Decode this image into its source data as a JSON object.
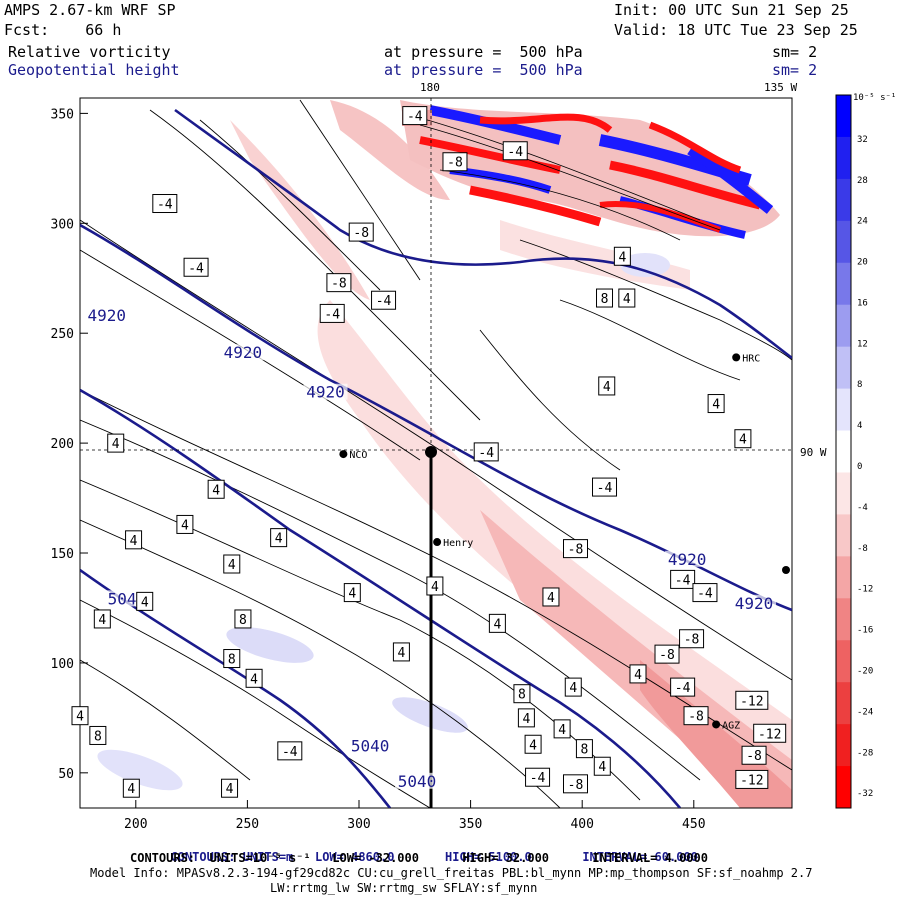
{
  "header": {
    "model": "AMPS 2.67-km WRF SP",
    "init": "Init: 00 UTC Sun 21 Sep 25",
    "fcst": "Fcst:    66 h",
    "valid": "Valid: 18 UTC Tue 23 Sep 25",
    "field1_name": "Relative vorticity",
    "field1_level": "at pressure =  500 hPa",
    "field1_sm": "sm= 2",
    "field2_name": "Geopotential height",
    "field2_level": "at pressure =  500 hPa",
    "field2_sm": "sm= 2",
    "lon_top_1": "180",
    "lon_top_2": "135 W",
    "lat_right": "90 W"
  },
  "axes": {
    "x_ticks": [
      "200",
      "250",
      "300",
      "350",
      "400",
      "450"
    ],
    "y_ticks": [
      "50",
      "100",
      "150",
      "200",
      "250",
      "300",
      "350"
    ],
    "xlim": [
      175,
      494
    ],
    "ylim": [
      34,
      357
    ]
  },
  "colorbar": {
    "unit_label": "10⁻⁵ s⁻¹",
    "ticks": [
      "32",
      "28",
      "24",
      "20",
      "16",
      "12",
      "8",
      "4",
      "0",
      "-4",
      "-8",
      "-12",
      "-16",
      "-20",
      "-24",
      "-28",
      "-32"
    ],
    "colors_top_to_bottom": [
      "#0000ff",
      "#2020f0",
      "#3a3ae8",
      "#5656e6",
      "#7878ea",
      "#9c9cf0",
      "#c0c0f6",
      "#e4e4fc",
      "#ffffff",
      "#fce6e6",
      "#f8c8c8",
      "#f4a6a6",
      "#f08484",
      "#ee6262",
      "#ec4040",
      "#f02020",
      "#ff0000"
    ]
  },
  "stations": [
    {
      "name": "NCO",
      "x": 293,
      "y": 195
    },
    {
      "name": "HRC",
      "x": 469,
      "y": 239
    },
    {
      "name": "Henry",
      "x": 335,
      "y": 155
    },
    {
      "name": "AGZ",
      "x": 460,
      "y": 72
    }
  ],
  "height_labels": [
    {
      "text": "4920",
      "x": 187,
      "y": 257
    },
    {
      "text": "4920",
      "x": 248,
      "y": 240
    },
    {
      "text": "4920",
      "x": 285,
      "y": 222
    },
    {
      "text": "4920",
      "x": 447,
      "y": 146
    },
    {
      "text": "4920",
      "x": 477,
      "y": 126
    },
    {
      "text": "5040",
      "x": 196,
      "y": 128
    },
    {
      "text": "5040",
      "x": 305,
      "y": 61
    },
    {
      "text": "5040",
      "x": 326,
      "y": 45
    }
  ],
  "vort_labels": [
    {
      "text": "-4",
      "x": 213,
      "y": 309
    },
    {
      "text": "-4",
      "x": 227,
      "y": 280
    },
    {
      "text": "-8",
      "x": 301,
      "y": 296
    },
    {
      "text": "-8",
      "x": 291,
      "y": 273
    },
    {
      "text": "-4",
      "x": 311,
      "y": 265
    },
    {
      "text": "-4",
      "x": 288,
      "y": 259
    },
    {
      "text": "-4",
      "x": 325,
      "y": 349
    },
    {
      "text": "-8",
      "x": 343,
      "y": 328
    },
    {
      "text": "-4",
      "x": 370,
      "y": 333
    },
    {
      "text": "4",
      "x": 418,
      "y": 285
    },
    {
      "text": "8",
      "x": 410,
      "y": 266
    },
    {
      "text": "4",
      "x": 420,
      "y": 266
    },
    {
      "text": "4",
      "x": 411,
      "y": 226
    },
    {
      "text": "4",
      "x": 460,
      "y": 218
    },
    {
      "text": "4",
      "x": 191,
      "y": 200
    },
    {
      "text": "4",
      "x": 236,
      "y": 179
    },
    {
      "text": "4",
      "x": 222,
      "y": 163
    },
    {
      "text": "4",
      "x": 199,
      "y": 156
    },
    {
      "text": "4",
      "x": 264,
      "y": 157
    },
    {
      "text": "4",
      "x": 243,
      "y": 145
    },
    {
      "text": "4",
      "x": 204,
      "y": 128
    },
    {
      "text": "4",
      "x": 297,
      "y": 132
    },
    {
      "text": "4",
      "x": 334,
      "y": 135
    },
    {
      "text": "4",
      "x": 185,
      "y": 120
    },
    {
      "text": "8",
      "x": 248,
      "y": 120
    },
    {
      "text": "8",
      "x": 243,
      "y": 102
    },
    {
      "text": "4",
      "x": 253,
      "y": 93
    },
    {
      "text": "4",
      "x": 319,
      "y": 105
    },
    {
      "text": "4",
      "x": 362,
      "y": 118
    },
    {
      "text": "4",
      "x": 386,
      "y": 130
    },
    {
      "text": "4",
      "x": 396,
      "y": 89
    },
    {
      "text": "4",
      "x": 425,
      "y": 95
    },
    {
      "text": "8",
      "x": 373,
      "y": 86
    },
    {
      "text": "4",
      "x": 375,
      "y": 75
    },
    {
      "text": "4",
      "x": 391,
      "y": 70
    },
    {
      "text": "4",
      "x": 378,
      "y": 63
    },
    {
      "text": "8",
      "x": 401,
      "y": 61
    },
    {
      "text": "4",
      "x": 409,
      "y": 53
    },
    {
      "text": "4",
      "x": 175,
      "y": 76
    },
    {
      "text": "8",
      "x": 183,
      "y": 67
    },
    {
      "text": "-4",
      "x": 269,
      "y": 60
    },
    {
      "text": "4",
      "x": 198,
      "y": 43
    },
    {
      "text": "4",
      "x": 242,
      "y": 43
    },
    {
      "text": "-4",
      "x": 380,
      "y": 48
    },
    {
      "text": "-8",
      "x": 397,
      "y": 45
    },
    {
      "text": "-4",
      "x": 357,
      "y": 196
    },
    {
      "text": "-4",
      "x": 410,
      "y": 180
    },
    {
      "text": "-8",
      "x": 397,
      "y": 152
    },
    {
      "text": "-4",
      "x": 445,
      "y": 138
    },
    {
      "text": "-4",
      "x": 455,
      "y": 132
    },
    {
      "text": "-8",
      "x": 449,
      "y": 111
    },
    {
      "text": "-8",
      "x": 438,
      "y": 104
    },
    {
      "text": "-4",
      "x": 445,
      "y": 89
    },
    {
      "text": "-8",
      "x": 451,
      "y": 76
    },
    {
      "text": "-12",
      "x": 476,
      "y": 83
    },
    {
      "text": "-12",
      "x": 484,
      "y": 68
    },
    {
      "text": "-8",
      "x": 477,
      "y": 58
    },
    {
      "text": "-12",
      "x": 476,
      "y": 47
    },
    {
      "text": "4",
      "x": 472,
      "y": 202
    }
  ],
  "footer": {
    "line1_a": "CONTOURS: UNITS=m",
    "line1_b": "LOW= 4860.0",
    "line1_c": "HIGH= 5100.0",
    "line1_d": "INTERVAL= 60.000",
    "line2": "CONTOURS:  UNITS=10⁻⁵ s⁻¹   LOW= -32.000      HIGH= 32.000      INTERVAL= 4.0000",
    "line3": "Model Info: MPASv8.2.3-194-gf29cd82c CU:cu_grell_freitas PBL:bl_mynn MP:mp_thompson SF:sf_noahmp 2.7",
    "line4": "LW:rrtmg_lw SW:rrtmg_sw SFLAY:sf_mynn"
  }
}
